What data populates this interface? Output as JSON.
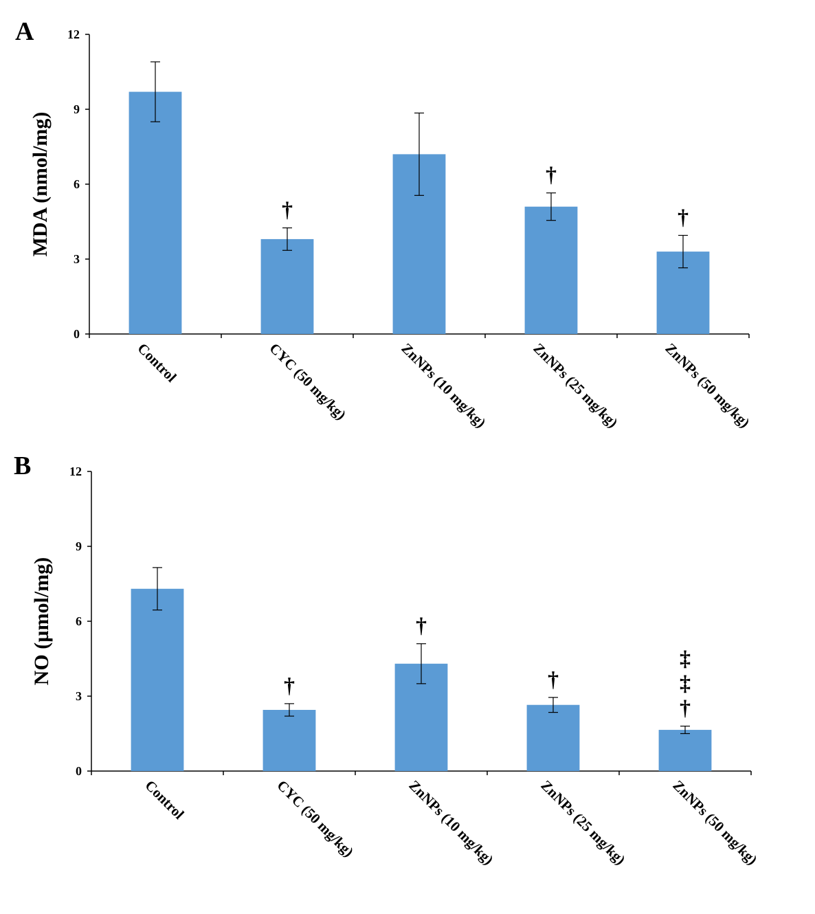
{
  "chart_data": [
    {
      "type": "bar",
      "panel_label": "A",
      "ylabel": "MDA (nmol/mg)",
      "xlabel": "",
      "ylim": [
        0,
        12
      ],
      "yticks": [
        0,
        3,
        6,
        9,
        12
      ],
      "categories": [
        "Control",
        "CYC (50 mg/kg)",
        "ZnNPs (10 mg/kg)",
        "ZnNPs (25 mg/kg)",
        "ZnNPs (50 mg/kg)"
      ],
      "values": [
        9.7,
        3.8,
        7.2,
        5.1,
        3.3
      ],
      "errors": [
        1.2,
        0.45,
        1.65,
        0.55,
        0.65
      ],
      "annotations": [
        "",
        "†",
        "",
        "†",
        "†"
      ],
      "bar_color": "#5b9bd5",
      "grid": false
    },
    {
      "type": "bar",
      "panel_label": "B",
      "ylabel": "NO (µmol/mg)",
      "xlabel": "",
      "ylim": [
        0,
        12
      ],
      "yticks": [
        0,
        3,
        6,
        9,
        12
      ],
      "categories": [
        "Control",
        "CYC (50 mg/kg)",
        "ZnNPs (10 mg/kg)",
        "ZnNPs (25 mg/kg)",
        "ZnNPs (50 mg/kg)"
      ],
      "values": [
        7.3,
        2.45,
        4.3,
        2.65,
        1.65
      ],
      "errors": [
        0.85,
        0.25,
        0.8,
        0.3,
        0.15
      ],
      "annotations": [
        "",
        "†",
        "†",
        "†",
        "‡\n‡\n†"
      ],
      "bar_color": "#5b9bd5",
      "grid": false
    }
  ]
}
